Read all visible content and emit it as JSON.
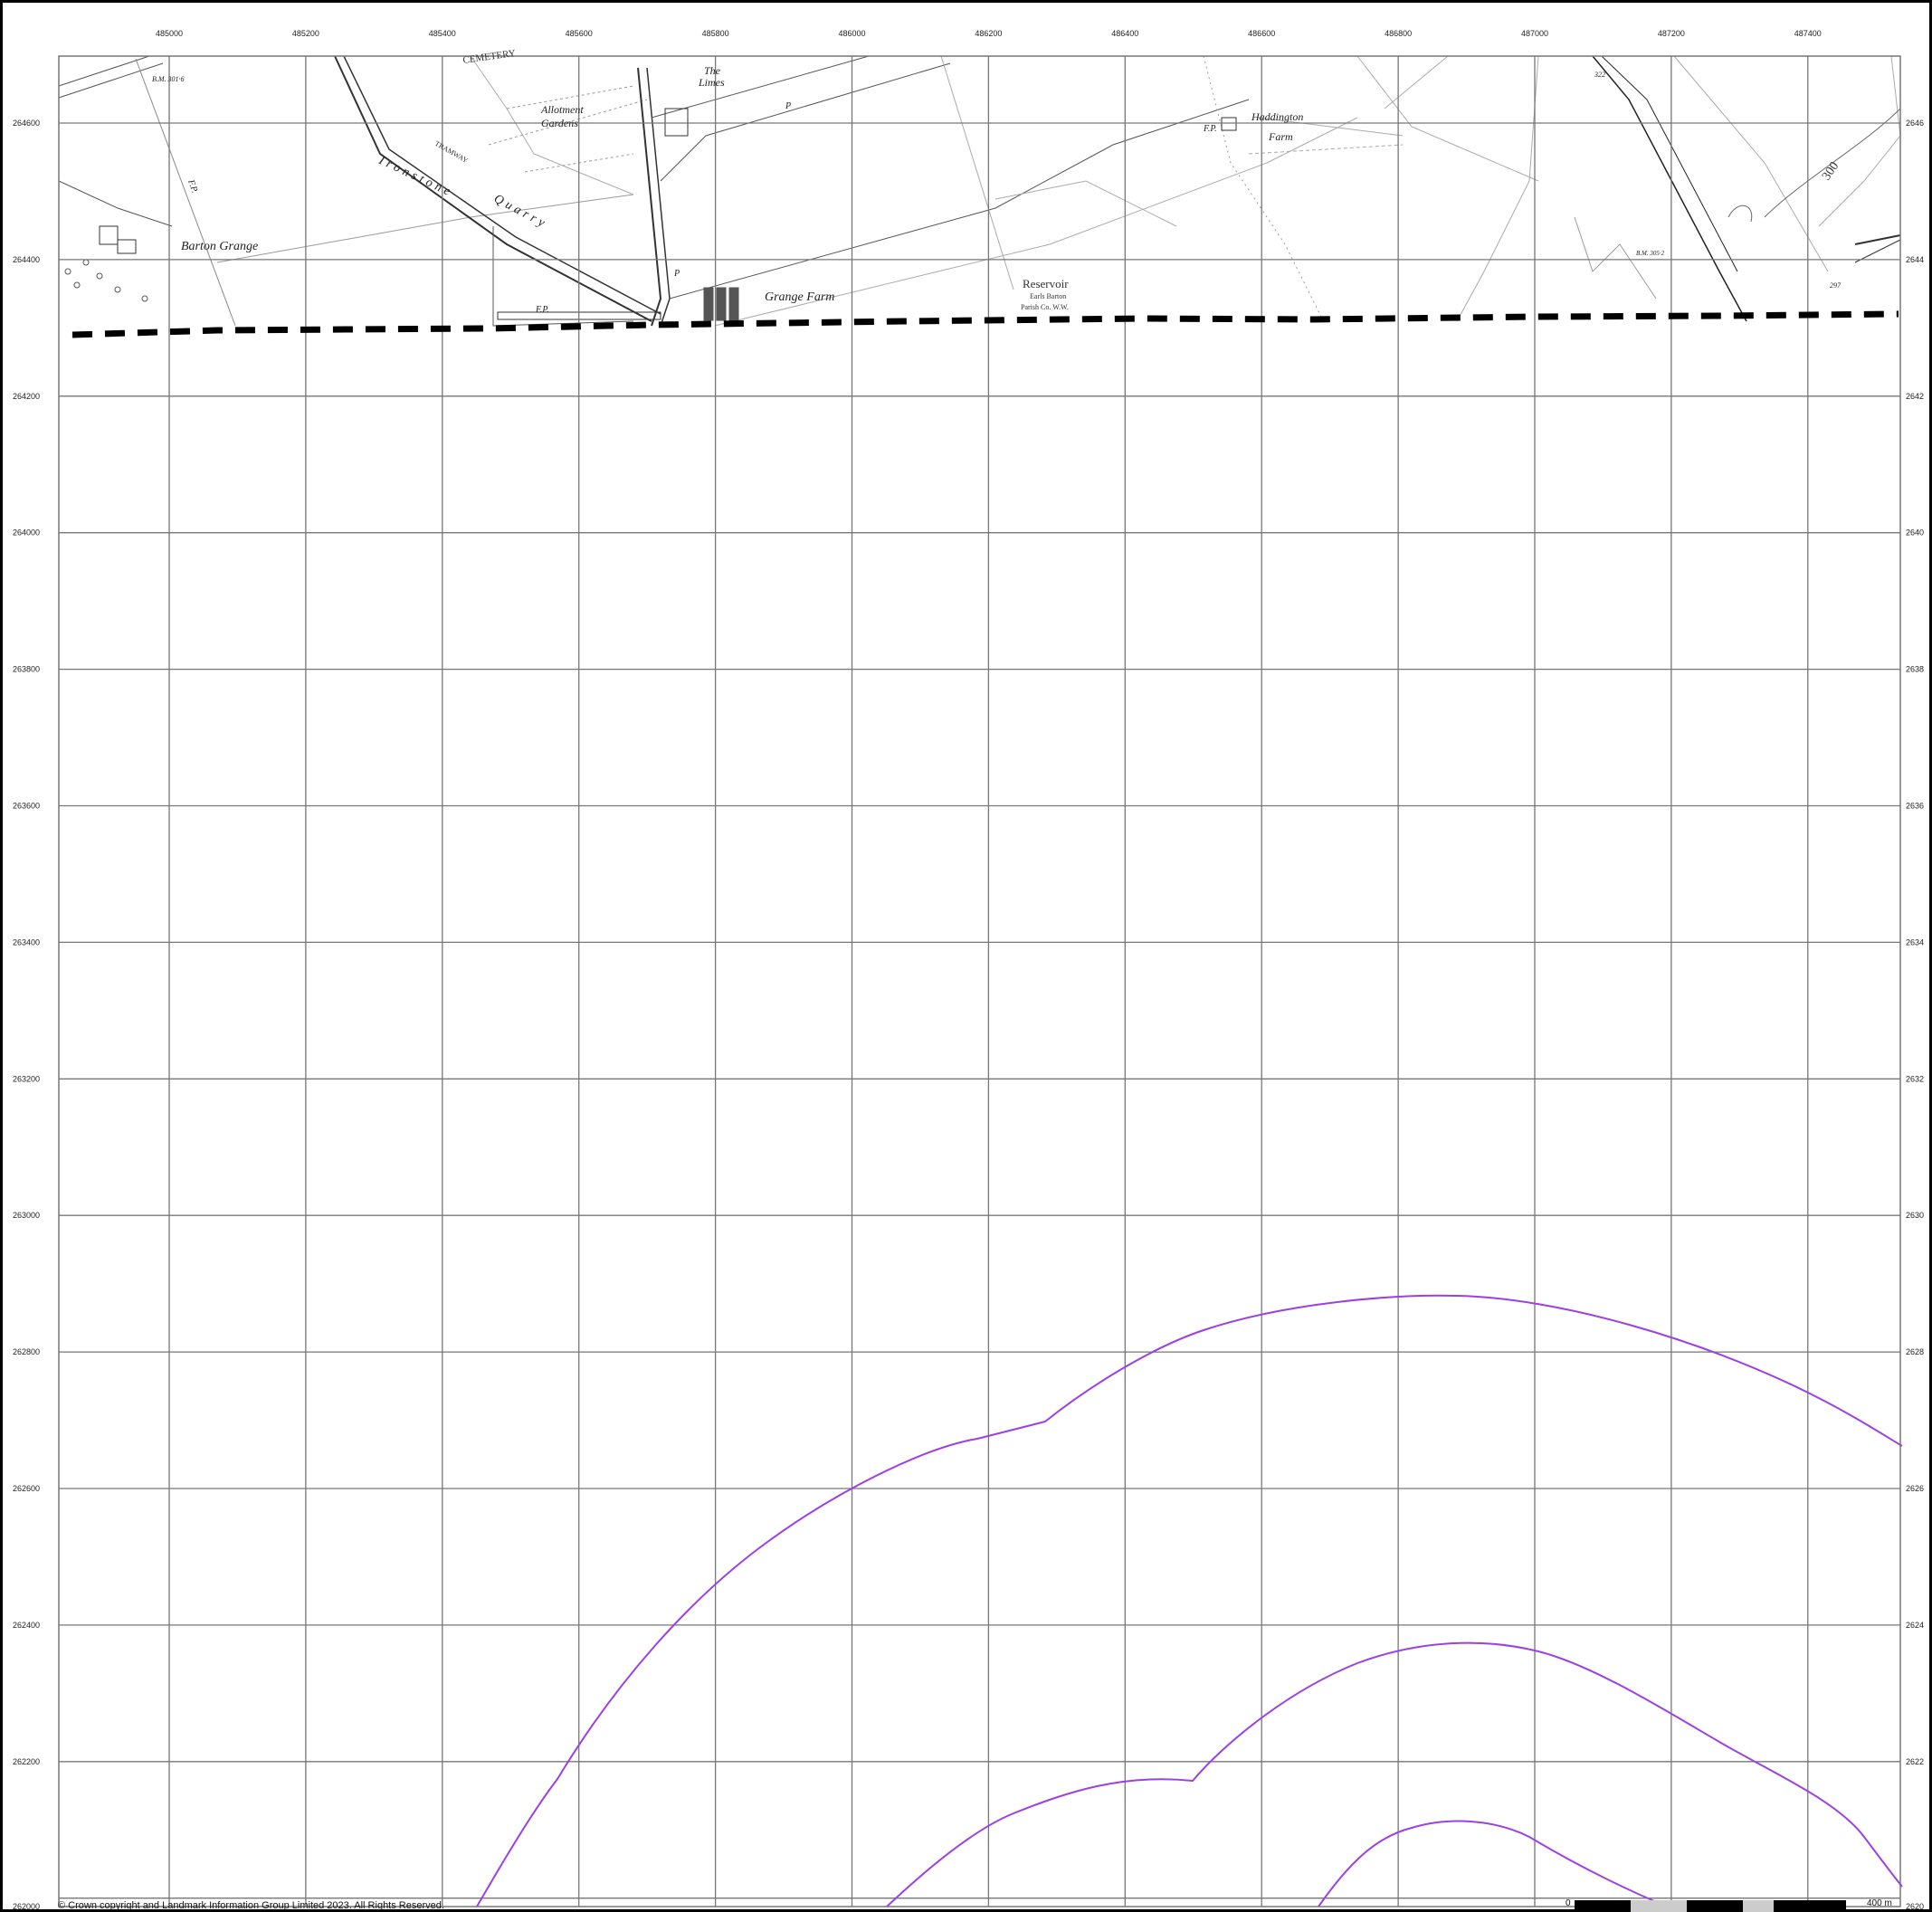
{
  "grid": {
    "eastings": [
      "485000",
      "485200",
      "485400",
      "485600",
      "485800",
      "486000",
      "486200",
      "486400",
      "486600",
      "486800",
      "487000",
      "487200",
      "487400"
    ],
    "northings": [
      "264600",
      "264400",
      "264200",
      "264000",
      "263800",
      "263600",
      "263400",
      "263200",
      "263000",
      "262800",
      "262600",
      "262400",
      "262200",
      "262000"
    ],
    "right_northings": [
      "2646",
      "2644",
      "2642",
      "2640",
      "2638",
      "2636",
      "2634",
      "2632",
      "2630",
      "2628",
      "2626",
      "2624",
      "2622",
      "2620"
    ]
  },
  "place_labels": {
    "cemetery": "CEMETERY",
    "allotment": "Allotment",
    "gardens": "Gardens",
    "the": "The",
    "limes": "Limes",
    "barton_grange": "Barton Grange",
    "grange_farm": "Grange Farm",
    "reservoir": "Reservoir",
    "reservoir_sub": "Earls Barton",
    "reservoir_sub2": "Parish Co. W.W.",
    "haddington": "Haddington",
    "farm": "Farm",
    "tramway": "TRAMWAY",
    "ironstone": "Ironstone",
    "quarry": "Quarry",
    "fp1": "F.P.",
    "fp2": "F.P.",
    "fp3": "F.P.",
    "bm1": "B.M. 301·6",
    "bm2": "B.M. 305·2",
    "contour300": "300",
    "spot322": "322",
    "spot297": "297",
    "p1": "P",
    "p2": "P"
  },
  "colors": {
    "grid": "#777777",
    "boundary": "#000000",
    "buffer": "#9b40e6"
  },
  "footer": {
    "copyright": "© Crown copyright and Landmark Information Group Limited 2023.  All Rights Reserved.",
    "scale_start": "0",
    "scale_end": "400 m"
  }
}
